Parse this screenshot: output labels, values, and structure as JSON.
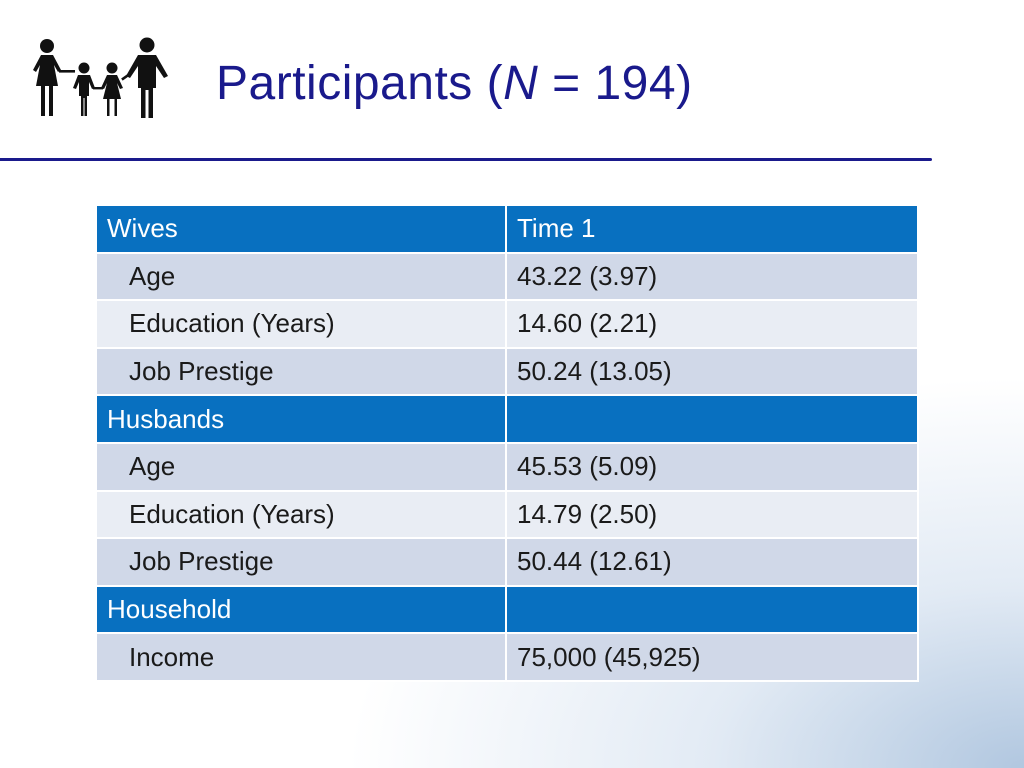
{
  "slide": {
    "title_prefix": "Participants (",
    "title_italic": "N",
    "title_suffix": " = 194)",
    "icon": "family-icon",
    "title_color": "#1a1a8c",
    "header_color": "#0870c0"
  },
  "table": {
    "groups": [
      {
        "header": "Wives",
        "header_value": "Time 1",
        "rows": [
          {
            "label": "Age",
            "value": "43.22 (3.97)"
          },
          {
            "label": "Education (Years)",
            "value": "14.60 (2.21)"
          },
          {
            "label": "Job Prestige",
            "value": "50.24 (13.05)"
          }
        ]
      },
      {
        "header": "Husbands",
        "header_value": "",
        "rows": [
          {
            "label": "Age",
            "value": "45.53 (5.09)"
          },
          {
            "label": "Education (Years)",
            "value": "14.79 (2.50)"
          },
          {
            "label": "Job Prestige",
            "value": "50.44 (12.61)"
          }
        ]
      },
      {
        "header": "Household",
        "header_value": "",
        "rows": [
          {
            "label": "Income",
            "value": "75,000 (45,925)"
          }
        ]
      }
    ]
  }
}
